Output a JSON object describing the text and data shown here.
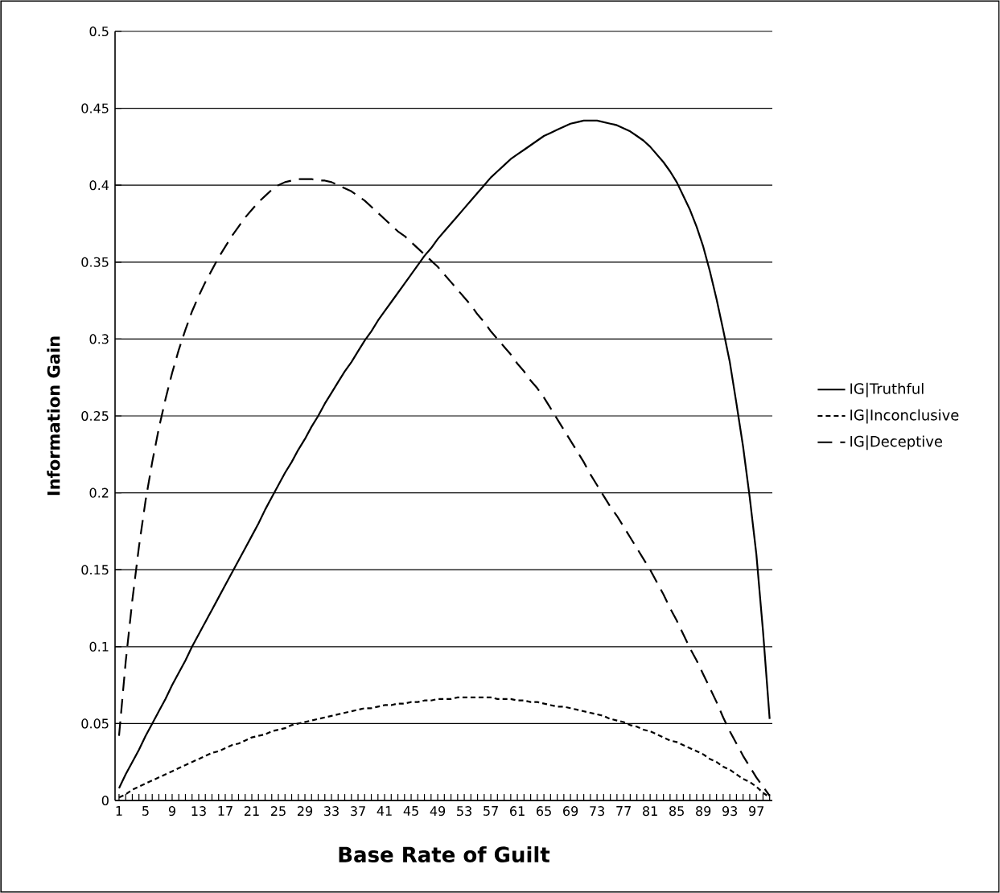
{
  "chart_data": {
    "type": "line",
    "xlabel": "Base Rate of Guilt",
    "ylabel": "Information Gain",
    "categories": [
      "1",
      null,
      null,
      null,
      "5",
      null,
      null,
      null,
      "9",
      null,
      null,
      null,
      "13",
      null,
      null,
      null,
      "17",
      null,
      null,
      null,
      "21",
      null,
      null,
      null,
      "25",
      null,
      null,
      null,
      "29",
      null,
      null,
      null,
      "33",
      null,
      null,
      null,
      "37",
      null,
      null,
      null,
      "41",
      null,
      null,
      null,
      "45",
      null,
      null,
      null,
      "49",
      null,
      null,
      null,
      "53",
      null,
      null,
      null,
      "57",
      null,
      null,
      null,
      "61",
      null,
      null,
      null,
      "65",
      null,
      null,
      null,
      "69",
      null,
      null,
      null,
      "73",
      null,
      null,
      null,
      "77",
      null,
      null,
      null,
      "81",
      null,
      null,
      null,
      "85",
      null,
      null,
      null,
      "89",
      null,
      null,
      null,
      "93",
      null,
      null,
      null,
      "97",
      null,
      null
    ],
    "series": [
      {
        "name": "IG|Truthful",
        "color": "#000000",
        "line_style": "solid",
        "values": [
          0.008,
          0.017,
          0.025,
          0.033,
          0.042,
          0.05,
          0.058,
          0.066,
          0.075,
          0.083,
          0.091,
          0.1,
          0.108,
          0.116,
          0.124,
          0.132,
          0.14,
          0.148,
          0.156,
          0.164,
          0.172,
          0.18,
          0.189,
          0.197,
          0.205,
          0.213,
          0.22,
          0.228,
          0.235,
          0.243,
          0.25,
          0.258,
          0.265,
          0.272,
          0.279,
          0.285,
          0.292,
          0.299,
          0.305,
          0.312,
          0.318,
          0.324,
          0.33,
          0.336,
          0.342,
          0.348,
          0.354,
          0.359,
          0.365,
          0.37,
          0.375,
          0.38,
          0.385,
          0.39,
          0.395,
          0.4,
          0.405,
          0.409,
          0.413,
          0.417,
          0.42,
          0.423,
          0.426,
          0.429,
          0.432,
          0.434,
          0.436,
          0.438,
          0.44,
          0.441,
          0.442,
          0.442,
          0.442,
          0.441,
          0.44,
          0.439,
          0.437,
          0.435,
          0.432,
          0.429,
          0.425,
          0.42,
          0.415,
          0.409,
          0.402,
          0.393,
          0.384,
          0.373,
          0.36,
          0.344,
          0.326,
          0.306,
          0.285,
          0.258,
          0.23,
          0.197,
          0.16,
          0.11,
          0.053
        ]
      },
      {
        "name": "IG|Inconclusive",
        "color": "#000000",
        "line_style": "dotted",
        "values": [
          0.002,
          0.004,
          0.007,
          0.009,
          0.011,
          0.013,
          0.015,
          0.017,
          0.019,
          0.021,
          0.023,
          0.025,
          0.027,
          0.029,
          0.031,
          0.032,
          0.034,
          0.036,
          0.037,
          0.039,
          0.041,
          0.042,
          0.043,
          0.045,
          0.046,
          0.047,
          0.049,
          0.05,
          0.051,
          0.052,
          0.053,
          0.054,
          0.055,
          0.056,
          0.057,
          0.058,
          0.059,
          0.06,
          0.06,
          0.061,
          0.062,
          0.062,
          0.063,
          0.063,
          0.064,
          0.064,
          0.065,
          0.065,
          0.066,
          0.066,
          0.066,
          0.067,
          0.067,
          0.067,
          0.067,
          0.067,
          0.067,
          0.066,
          0.066,
          0.066,
          0.065,
          0.065,
          0.064,
          0.064,
          0.063,
          0.062,
          0.061,
          0.061,
          0.06,
          0.059,
          0.058,
          0.057,
          0.056,
          0.055,
          0.053,
          0.052,
          0.051,
          0.049,
          0.048,
          0.046,
          0.045,
          0.043,
          0.041,
          0.039,
          0.038,
          0.036,
          0.034,
          0.032,
          0.03,
          0.027,
          0.025,
          0.022,
          0.02,
          0.017,
          0.014,
          0.012,
          0.009,
          0.005,
          0.002
        ]
      },
      {
        "name": "IG|Deceptive",
        "color": "#000000",
        "line_style": "dashed",
        "values": [
          0.042,
          0.09,
          0.13,
          0.165,
          0.195,
          0.22,
          0.242,
          0.261,
          0.278,
          0.293,
          0.306,
          0.318,
          0.328,
          0.337,
          0.345,
          0.353,
          0.36,
          0.367,
          0.373,
          0.379,
          0.384,
          0.389,
          0.393,
          0.397,
          0.4,
          0.402,
          0.403,
          0.404,
          0.404,
          0.404,
          0.403,
          0.403,
          0.402,
          0.4,
          0.398,
          0.396,
          0.393,
          0.39,
          0.386,
          0.382,
          0.378,
          0.374,
          0.37,
          0.367,
          0.363,
          0.359,
          0.355,
          0.351,
          0.347,
          0.342,
          0.337,
          0.332,
          0.327,
          0.322,
          0.316,
          0.311,
          0.305,
          0.3,
          0.295,
          0.29,
          0.284,
          0.279,
          0.273,
          0.268,
          0.262,
          0.255,
          0.248,
          0.241,
          0.234,
          0.227,
          0.22,
          0.212,
          0.205,
          0.198,
          0.191,
          0.185,
          0.178,
          0.171,
          0.164,
          0.157,
          0.15,
          0.142,
          0.134,
          0.125,
          0.117,
          0.108,
          0.099,
          0.091,
          0.082,
          0.073,
          0.064,
          0.054,
          0.045,
          0.037,
          0.029,
          0.022,
          0.015,
          0.009,
          0.003
        ]
      }
    ],
    "ylim": [
      0,
      0.5
    ],
    "yticks": [
      0,
      0.05,
      0.1,
      0.15,
      0.2,
      0.25,
      0.3,
      0.35,
      0.4,
      0.45,
      0.5
    ],
    "grid": "y",
    "legend": "right"
  }
}
